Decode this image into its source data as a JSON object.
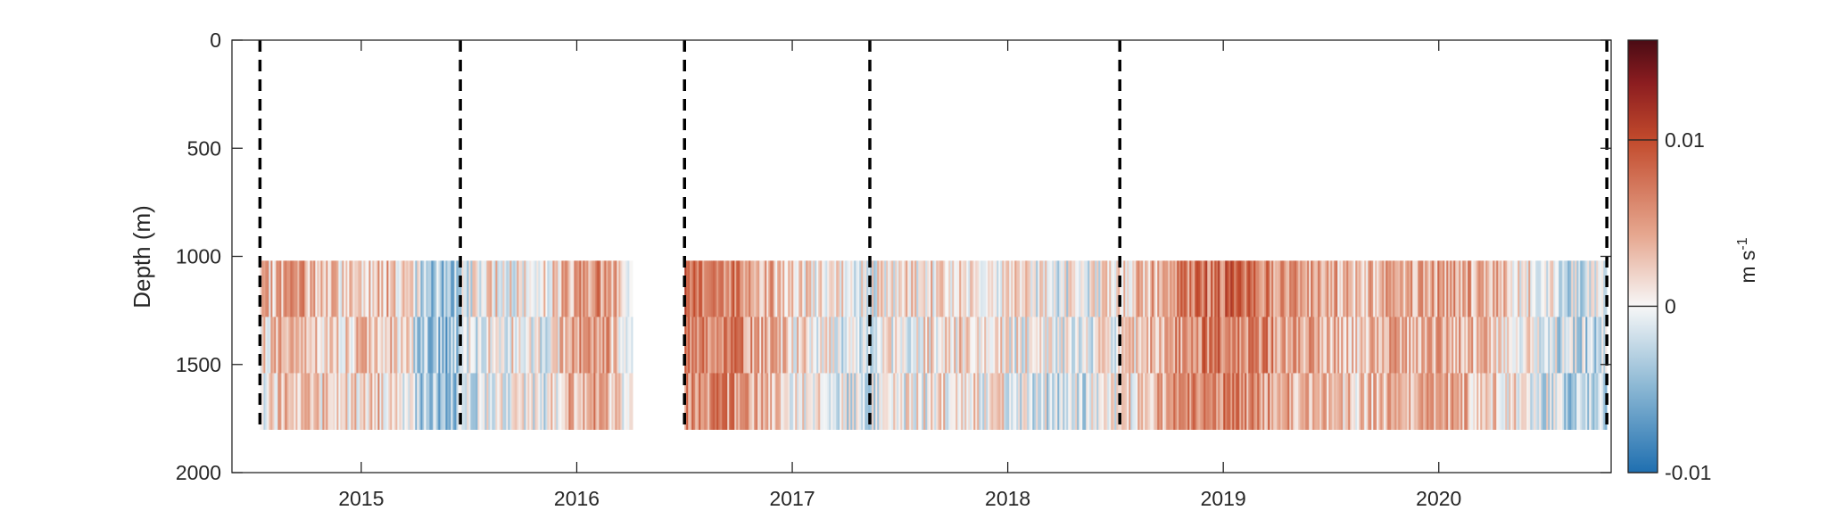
{
  "chart_data": {
    "type": "heatmap",
    "title": "",
    "xlabel": "",
    "ylabel": "Depth (m)",
    "x_tick_labels": [
      "2015",
      "2016",
      "2017",
      "2018",
      "2019",
      "2020"
    ],
    "x_ticks": [
      2015.0,
      2016.0,
      2017.0,
      2018.0,
      2019.0,
      2020.0
    ],
    "xlim": [
      2014.4,
      2020.8
    ],
    "y_tick_labels": [
      "0",
      "500",
      "1000",
      "1500",
      "2000"
    ],
    "y_ticks": [
      0,
      500,
      1000,
      1500,
      2000
    ],
    "ylim": [
      0,
      2000
    ],
    "y_reversed": true,
    "data_depth_range": [
      1020,
      1800
    ],
    "data_segments": [
      {
        "start": 2014.53,
        "end": 2016.26,
        "mean": 0.001
      },
      {
        "start": 2016.5,
        "end": 2020.78,
        "mean": 0.003
      }
    ],
    "deployment_boundaries": [
      2014.53,
      2015.46,
      2016.5,
      2017.36,
      2018.52,
      2020.78
    ],
    "colorbar": {
      "label": "m s",
      "label_superscript": "-1",
      "range": [
        -0.01,
        0.016
      ],
      "ticks": [
        -0.01,
        0,
        0.01
      ],
      "tick_labels": [
        "-0.01",
        "0",
        "0.01"
      ],
      "colormap": "diverging-blue-white-red",
      "colors": [
        "#1f6fb0",
        "#ffffff",
        "#c24a2c",
        "#4a0b14"
      ]
    },
    "grid": false
  }
}
